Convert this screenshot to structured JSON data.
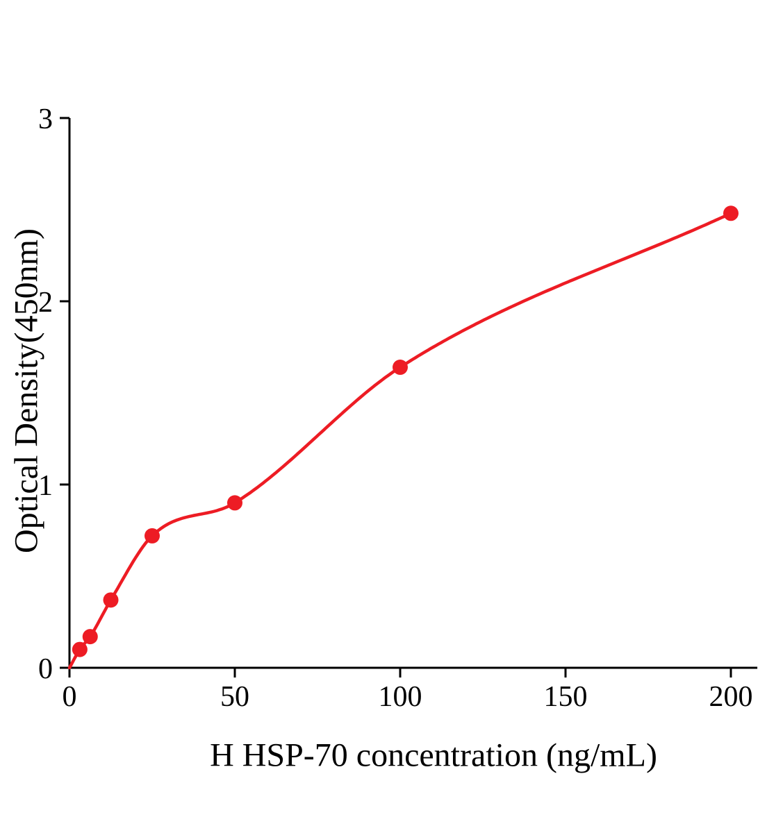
{
  "chart_data": {
    "type": "scatter",
    "title": "",
    "xlabel": "H HSP-70 concentration (ng/mL)",
    "ylabel": "Optical Density(450nm)",
    "x": [
      3.125,
      6.25,
      12.5,
      25,
      50,
      100,
      200
    ],
    "y": [
      0.1,
      0.17,
      0.37,
      0.72,
      0.9,
      1.64,
      2.48
    ],
    "curve_start_x": 0,
    "curve_start_y": 0,
    "xlim": [
      0,
      208
    ],
    "ylim": [
      0,
      3
    ],
    "x_ticks": [
      0,
      50,
      100,
      150,
      200
    ],
    "y_ticks": [
      0,
      1,
      2,
      3
    ],
    "grid": false,
    "legend_position": "none",
    "line_color": "#ed1c24",
    "point_color": "#ed1c24",
    "axis_color": "#000000"
  }
}
